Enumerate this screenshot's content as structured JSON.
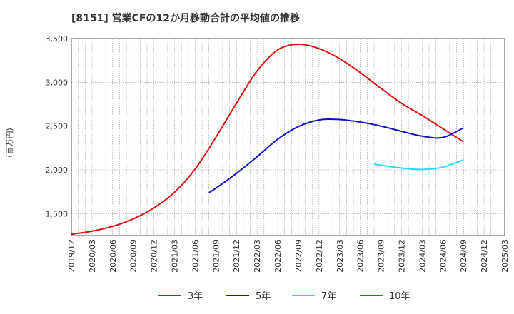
{
  "chart_data": {
    "type": "line",
    "title": "[8151]  営業CFの12か月移動合計の平均値の推移",
    "ylabel": "(百万円)",
    "xlabel": "",
    "ylim": [
      1250,
      3500
    ],
    "yticks": [
      1500,
      2000,
      2500,
      3000,
      3500
    ],
    "ytick_labels": [
      "1,500",
      "2,000",
      "2,500",
      "3,000",
      "3,500"
    ],
    "xlim": [
      "2019-12",
      "2025-03"
    ],
    "xtick_labels": [
      "2019/12",
      "2020/03",
      "2020/06",
      "2020/09",
      "2020/12",
      "2021/03",
      "2021/06",
      "2021/09",
      "2021/12",
      "2022/03",
      "2022/06",
      "2022/09",
      "2022/12",
      "2023/03",
      "2023/06",
      "2023/09",
      "2023/12",
      "2024/03",
      "2024/06",
      "2024/09",
      "2024/12",
      "2025/03"
    ],
    "grid": true,
    "legend_position": "bottom",
    "series": [
      {
        "name": "3年",
        "color": "#dd1111",
        "points": [
          [
            "2019-12",
            1265
          ],
          [
            "2020-03",
            1300
          ],
          [
            "2020-06",
            1355
          ],
          [
            "2020-09",
            1440
          ],
          [
            "2020-12",
            1565
          ],
          [
            "2021-03",
            1745
          ],
          [
            "2021-06",
            2010
          ],
          [
            "2021-09",
            2370
          ],
          [
            "2021-12",
            2760
          ],
          [
            "2022-03",
            3130
          ],
          [
            "2022-06",
            3370
          ],
          [
            "2022-09",
            3435
          ],
          [
            "2022-12",
            3385
          ],
          [
            "2023-03",
            3270
          ],
          [
            "2023-06",
            3110
          ],
          [
            "2023-09",
            2930
          ],
          [
            "2023-12",
            2760
          ],
          [
            "2024-03",
            2620
          ],
          [
            "2024-06",
            2470
          ],
          [
            "2024-09",
            2320
          ]
        ]
      },
      {
        "name": "5年",
        "color": "#1111cc",
        "points": [
          [
            "2021-08",
            1740
          ],
          [
            "2021-09",
            1790
          ],
          [
            "2021-12",
            1960
          ],
          [
            "2022-03",
            2150
          ],
          [
            "2022-06",
            2350
          ],
          [
            "2022-09",
            2495
          ],
          [
            "2022-12",
            2570
          ],
          [
            "2023-03",
            2575
          ],
          [
            "2023-06",
            2545
          ],
          [
            "2023-09",
            2500
          ],
          [
            "2023-12",
            2440
          ],
          [
            "2024-03",
            2385
          ],
          [
            "2024-06",
            2370
          ],
          [
            "2024-09",
            2480
          ]
        ]
      },
      {
        "name": "7年",
        "color": "#22ddee",
        "points": [
          [
            "2023-08",
            2065
          ],
          [
            "2023-12",
            2020
          ],
          [
            "2024-03",
            2005
          ],
          [
            "2024-06",
            2030
          ],
          [
            "2024-09",
            2115
          ]
        ]
      },
      {
        "name": "10年",
        "color": "#228822",
        "points": []
      }
    ]
  }
}
